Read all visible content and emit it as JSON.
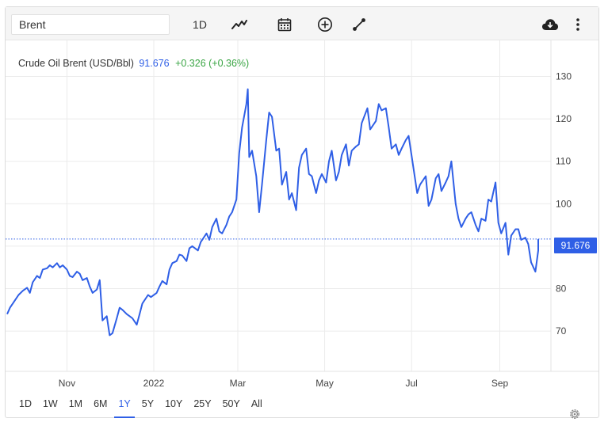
{
  "toolbar": {
    "search_value": "Brent",
    "interval_label": "1D"
  },
  "icons": {
    "line_chart": "line-chart-icon",
    "calendar": "calendar-icon",
    "add": "plus-circle-icon",
    "draw": "draw-line-icon",
    "download": "cloud-download-icon",
    "menu": "vertical-dots-icon",
    "settings": "gear-icon"
  },
  "header": {
    "name": "Crude Oil Brent (USD/Bbl)",
    "last": "91.676",
    "change": "+0.326 (+0.36%)"
  },
  "last_tag": "91.676",
  "ranges": [
    "1D",
    "1W",
    "1M",
    "6M",
    "1Y",
    "5Y",
    "10Y",
    "25Y",
    "50Y",
    "All"
  ],
  "active_range": "1Y",
  "colors": {
    "line": "#2f5fe6",
    "positive": "#3aa544",
    "grid": "#ebebeb"
  },
  "chart_data": {
    "type": "line",
    "title": "Crude Oil Brent (USD/Bbl)",
    "xlabel": "",
    "ylabel": "",
    "ylim": [
      60.5,
      138.5
    ],
    "yticks": [
      70,
      80,
      90,
      100,
      110,
      120,
      130
    ],
    "xticks": [
      {
        "label": "Nov",
        "x": "2021-11-01"
      },
      {
        "label": "2022",
        "x": "2022-01-01"
      },
      {
        "label": "Mar",
        "x": "2022-03-01"
      },
      {
        "label": "May",
        "x": "2022-05-01"
      },
      {
        "label": "Jul",
        "x": "2022-07-01"
      },
      {
        "label": "Sep",
        "x": "2022-09-01"
      }
    ],
    "xlim": [
      "2021-09-20",
      "2022-09-28"
    ],
    "last_value": 91.676,
    "grid": true,
    "series": [
      {
        "values": [
          [
            "2021-09-20",
            74.0
          ],
          [
            "2021-09-22",
            75.5
          ],
          [
            "2021-09-25",
            77.0
          ],
          [
            "2021-09-28",
            78.5
          ],
          [
            "2021-10-01",
            79.5
          ],
          [
            "2021-10-04",
            80.2
          ],
          [
            "2021-10-06",
            79.0
          ],
          [
            "2021-10-08",
            81.5
          ],
          [
            "2021-10-11",
            83.0
          ],
          [
            "2021-10-13",
            82.5
          ],
          [
            "2021-10-15",
            84.5
          ],
          [
            "2021-10-18",
            84.8
          ],
          [
            "2021-10-20",
            85.5
          ],
          [
            "2021-10-22",
            85.0
          ],
          [
            "2021-10-25",
            86.0
          ],
          [
            "2021-10-27",
            85.0
          ],
          [
            "2021-10-29",
            85.5
          ],
          [
            "2021-11-01",
            84.5
          ],
          [
            "2021-11-03",
            83.0
          ],
          [
            "2021-11-05",
            82.7
          ],
          [
            "2021-11-08",
            84.0
          ],
          [
            "2021-11-10",
            83.5
          ],
          [
            "2021-11-12",
            82.0
          ],
          [
            "2021-11-15",
            82.5
          ],
          [
            "2021-11-17",
            80.5
          ],
          [
            "2021-11-19",
            79.0
          ],
          [
            "2021-11-22",
            79.8
          ],
          [
            "2021-11-24",
            82.0
          ],
          [
            "2021-11-26",
            72.5
          ],
          [
            "2021-11-29",
            73.5
          ],
          [
            "2021-12-01",
            69.0
          ],
          [
            "2021-12-03",
            69.5
          ],
          [
            "2021-12-06",
            73.0
          ],
          [
            "2021-12-08",
            75.5
          ],
          [
            "2021-12-10",
            75.0
          ],
          [
            "2021-12-13",
            74.0
          ],
          [
            "2021-12-15",
            73.5
          ],
          [
            "2021-12-17",
            73.0
          ],
          [
            "2021-12-20",
            71.5
          ],
          [
            "2021-12-22",
            74.0
          ],
          [
            "2021-12-24",
            76.5
          ],
          [
            "2021-12-28",
            78.5
          ],
          [
            "2021-12-30",
            78.0
          ],
          [
            "2022-01-03",
            79.0
          ],
          [
            "2022-01-05",
            80.5
          ],
          [
            "2022-01-07",
            81.8
          ],
          [
            "2022-01-10",
            81.0
          ],
          [
            "2022-01-12",
            84.5
          ],
          [
            "2022-01-14",
            86.0
          ],
          [
            "2022-01-17",
            86.5
          ],
          [
            "2022-01-19",
            88.0
          ],
          [
            "2022-01-21",
            87.8
          ],
          [
            "2022-01-24",
            86.5
          ],
          [
            "2022-01-26",
            89.5
          ],
          [
            "2022-01-28",
            90.0
          ],
          [
            "2022-02-01",
            89.0
          ],
          [
            "2022-02-03",
            91.0
          ],
          [
            "2022-02-07",
            93.0
          ],
          [
            "2022-02-09",
            91.5
          ],
          [
            "2022-02-11",
            94.5
          ],
          [
            "2022-02-14",
            96.5
          ],
          [
            "2022-02-16",
            93.5
          ],
          [
            "2022-02-18",
            93.0
          ],
          [
            "2022-02-21",
            95.0
          ],
          [
            "2022-02-23",
            97.0
          ],
          [
            "2022-02-25",
            98.0
          ],
          [
            "2022-02-28",
            101.0
          ],
          [
            "2022-03-02",
            112.0
          ],
          [
            "2022-03-04",
            118.0
          ],
          [
            "2022-03-07",
            123.5
          ],
          [
            "2022-03-08",
            127.0
          ],
          [
            "2022-03-09",
            111.0
          ],
          [
            "2022-03-11",
            112.5
          ],
          [
            "2022-03-14",
            106.5
          ],
          [
            "2022-03-16",
            98.0
          ],
          [
            "2022-03-18",
            104.5
          ],
          [
            "2022-03-21",
            115.0
          ],
          [
            "2022-03-23",
            121.5
          ],
          [
            "2022-03-25",
            120.5
          ],
          [
            "2022-03-28",
            112.5
          ],
          [
            "2022-03-30",
            113.0
          ],
          [
            "2022-04-01",
            104.5
          ],
          [
            "2022-04-04",
            107.5
          ],
          [
            "2022-04-06",
            101.0
          ],
          [
            "2022-04-08",
            102.5
          ],
          [
            "2022-04-11",
            98.5
          ],
          [
            "2022-04-13",
            108.5
          ],
          [
            "2022-04-15",
            111.5
          ],
          [
            "2022-04-18",
            113.0
          ],
          [
            "2022-04-20",
            107.0
          ],
          [
            "2022-04-22",
            106.5
          ],
          [
            "2022-04-25",
            102.5
          ],
          [
            "2022-04-27",
            105.5
          ],
          [
            "2022-04-29",
            107.0
          ],
          [
            "2022-05-02",
            105.0
          ],
          [
            "2022-05-04",
            110.0
          ],
          [
            "2022-05-06",
            112.5
          ],
          [
            "2022-05-09",
            105.5
          ],
          [
            "2022-05-11",
            107.5
          ],
          [
            "2022-05-13",
            111.5
          ],
          [
            "2022-05-16",
            114.0
          ],
          [
            "2022-05-18",
            109.0
          ],
          [
            "2022-05-20",
            112.5
          ],
          [
            "2022-05-23",
            113.5
          ],
          [
            "2022-05-25",
            114.0
          ],
          [
            "2022-05-27",
            119.0
          ],
          [
            "2022-05-31",
            122.5
          ],
          [
            "2022-06-02",
            117.5
          ],
          [
            "2022-06-06",
            119.5
          ],
          [
            "2022-06-08",
            123.5
          ],
          [
            "2022-06-10",
            122.0
          ],
          [
            "2022-06-13",
            122.5
          ],
          [
            "2022-06-15",
            118.0
          ],
          [
            "2022-06-17",
            113.0
          ],
          [
            "2022-06-20",
            114.0
          ],
          [
            "2022-06-22",
            111.5
          ],
          [
            "2022-06-24",
            113.0
          ],
          [
            "2022-06-27",
            115.0
          ],
          [
            "2022-06-29",
            116.0
          ],
          [
            "2022-07-01",
            111.5
          ],
          [
            "2022-07-05",
            102.5
          ],
          [
            "2022-07-07",
            104.5
          ],
          [
            "2022-07-11",
            106.5
          ],
          [
            "2022-07-13",
            99.5
          ],
          [
            "2022-07-15",
            101.0
          ],
          [
            "2022-07-18",
            106.0
          ],
          [
            "2022-07-20",
            107.0
          ],
          [
            "2022-07-22",
            103.0
          ],
          [
            "2022-07-25",
            105.0
          ],
          [
            "2022-07-27",
            106.5
          ],
          [
            "2022-07-29",
            110.0
          ],
          [
            "2022-08-01",
            100.0
          ],
          [
            "2022-08-03",
            96.5
          ],
          [
            "2022-08-05",
            94.5
          ],
          [
            "2022-08-08",
            96.5
          ],
          [
            "2022-08-10",
            97.5
          ],
          [
            "2022-08-12",
            98.0
          ],
          [
            "2022-08-15",
            95.0
          ],
          [
            "2022-08-17",
            93.5
          ],
          [
            "2022-08-19",
            96.5
          ],
          [
            "2022-08-22",
            96.0
          ],
          [
            "2022-08-24",
            101.0
          ],
          [
            "2022-08-26",
            100.5
          ],
          [
            "2022-08-29",
            105.0
          ],
          [
            "2022-08-31",
            95.5
          ],
          [
            "2022-09-02",
            93.0
          ],
          [
            "2022-09-05",
            95.5
          ],
          [
            "2022-09-07",
            88.0
          ],
          [
            "2022-09-09",
            92.5
          ],
          [
            "2022-09-12",
            94.0
          ],
          [
            "2022-09-14",
            94.0
          ],
          [
            "2022-09-16",
            91.5
          ],
          [
            "2022-09-19",
            92.0
          ],
          [
            "2022-09-21",
            90.5
          ],
          [
            "2022-09-23",
            86.2
          ],
          [
            "2022-09-26",
            84.0
          ],
          [
            "2022-09-28",
            89.0
          ],
          [
            "2022-09-28",
            91.676
          ]
        ]
      }
    ]
  }
}
